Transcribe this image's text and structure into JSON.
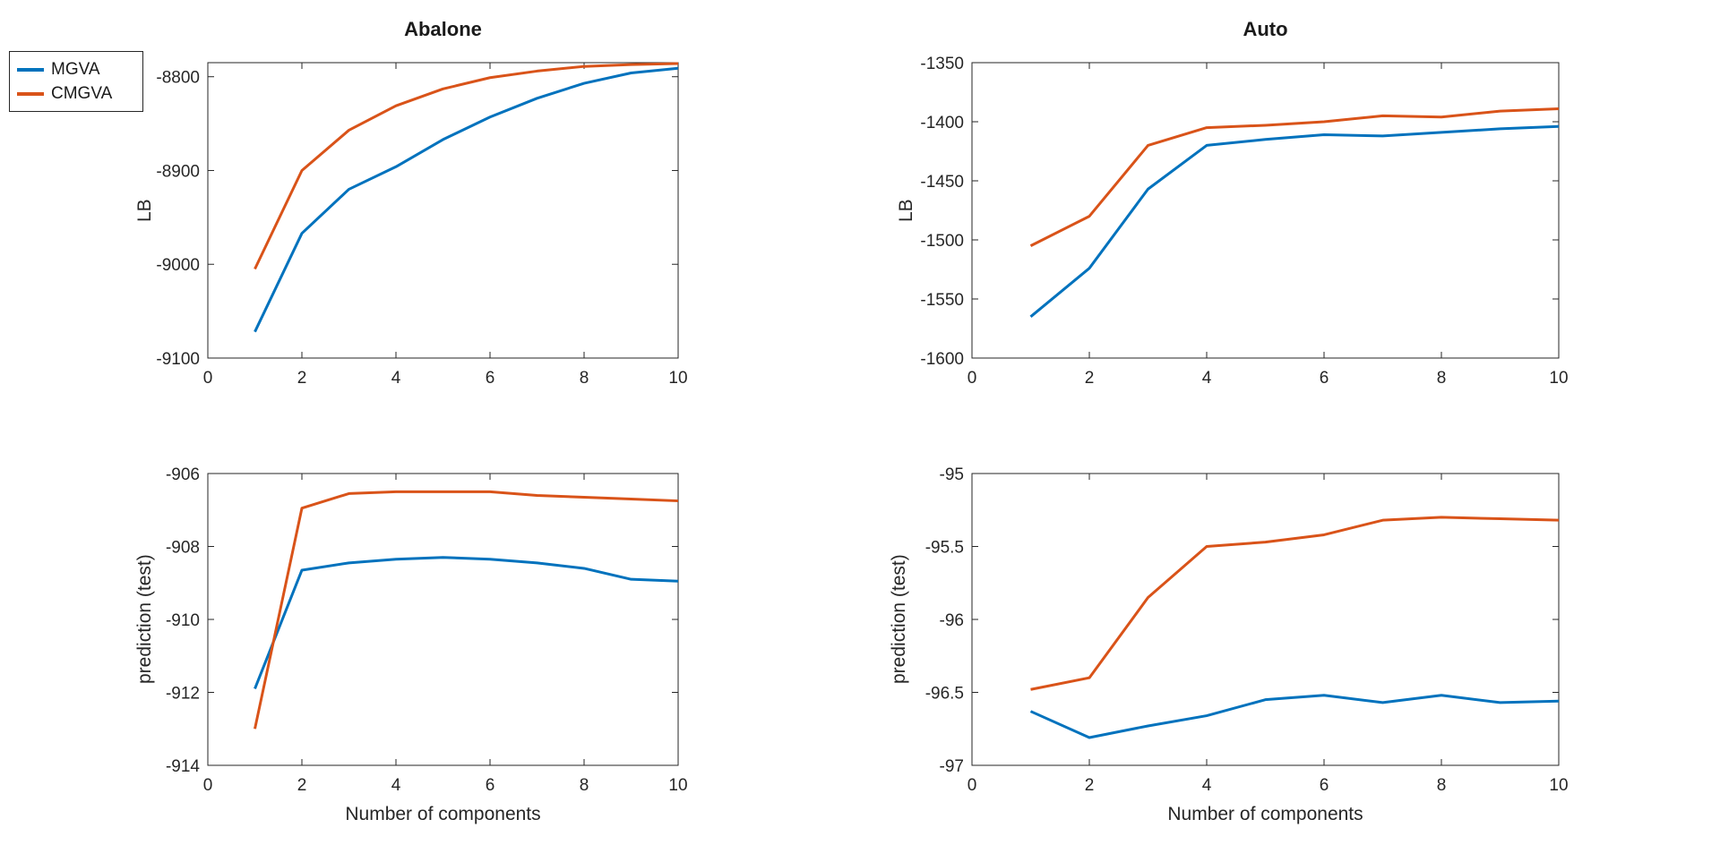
{
  "figure": {
    "background": "#ffffff",
    "axis_color": "#262626",
    "line_width": 3
  },
  "legend": {
    "position": "top-left",
    "items": [
      {
        "label": "MGVA",
        "color": "#0072BD"
      },
      {
        "label": "CMGVA",
        "color": "#D95319"
      }
    ]
  },
  "chart_data": [
    {
      "type": "line",
      "title": "Abalone",
      "ylabel": "LB",
      "xlabel": "",
      "x": [
        1,
        2,
        3,
        4,
        5,
        6,
        7,
        8,
        9,
        10
      ],
      "xlim": [
        0,
        10
      ],
      "ylim": [
        -9100,
        -8785
      ],
      "xticks": [
        0,
        2,
        4,
        6,
        8,
        10
      ],
      "yticks": [
        -9100,
        -9000,
        -8900,
        -8800
      ],
      "grid": false,
      "legend_position": "outside-top-left",
      "series": [
        {
          "name": "MGVA",
          "color": "#0072BD",
          "values": [
            -9072,
            -8967,
            -8920,
            -8896,
            -8867,
            -8843,
            -8823,
            -8807,
            -8796,
            -8791
          ]
        },
        {
          "name": "CMGVA",
          "color": "#D95319",
          "values": [
            -9005,
            -8900,
            -8857,
            -8831,
            -8813,
            -8801,
            -8794,
            -8789,
            -8787,
            -8786
          ]
        }
      ]
    },
    {
      "type": "line",
      "title": "Auto",
      "ylabel": "LB",
      "xlabel": "",
      "x": [
        1,
        2,
        3,
        4,
        5,
        6,
        7,
        8,
        9,
        10
      ],
      "xlim": [
        0,
        10
      ],
      "ylim": [
        -1600,
        -1350
      ],
      "xticks": [
        0,
        2,
        4,
        6,
        8,
        10
      ],
      "yticks": [
        -1600,
        -1550,
        -1500,
        -1450,
        -1400,
        -1350
      ],
      "grid": false,
      "series": [
        {
          "name": "MGVA",
          "color": "#0072BD",
          "values": [
            -1565,
            -1524,
            -1457,
            -1420,
            -1415,
            -1411,
            -1412,
            -1409,
            -1406,
            -1404
          ]
        },
        {
          "name": "CMGVA",
          "color": "#D95319",
          "values": [
            -1505,
            -1480,
            -1420,
            -1405,
            -1403,
            -1400,
            -1395,
            -1396,
            -1391,
            -1389
          ]
        }
      ]
    },
    {
      "type": "line",
      "title": "",
      "ylabel": "prediction (test)",
      "xlabel": "Number of components",
      "x": [
        1,
        2,
        3,
        4,
        5,
        6,
        7,
        8,
        9,
        10
      ],
      "xlim": [
        0,
        10
      ],
      "ylim": [
        -914,
        -906
      ],
      "xticks": [
        0,
        2,
        4,
        6,
        8,
        10
      ],
      "yticks": [
        -914,
        -912,
        -910,
        -908,
        -906
      ],
      "grid": false,
      "series": [
        {
          "name": "MGVA",
          "color": "#0072BD",
          "values": [
            -911.9,
            -908.65,
            -908.45,
            -908.35,
            -908.3,
            -908.35,
            -908.45,
            -908.6,
            -908.9,
            -908.95
          ]
        },
        {
          "name": "CMGVA",
          "color": "#D95319",
          "values": [
            -913.0,
            -906.95,
            -906.55,
            -906.5,
            -906.5,
            -906.5,
            -906.6,
            -906.65,
            -906.7,
            -906.75
          ]
        }
      ]
    },
    {
      "type": "line",
      "title": "",
      "ylabel": "prediction (test)",
      "xlabel": "Number of components",
      "x": [
        1,
        2,
        3,
        4,
        5,
        6,
        7,
        8,
        9,
        10
      ],
      "xlim": [
        0,
        10
      ],
      "ylim": [
        -97,
        -95
      ],
      "xticks": [
        0,
        2,
        4,
        6,
        8,
        10
      ],
      "yticks": [
        -97,
        -96.5,
        -96,
        -95.5,
        -95
      ],
      "grid": false,
      "series": [
        {
          "name": "MGVA",
          "color": "#0072BD",
          "values": [
            -96.63,
            -96.81,
            -96.73,
            -96.66,
            -96.55,
            -96.52,
            -96.57,
            -96.52,
            -96.57,
            -96.56
          ]
        },
        {
          "name": "CMGVA",
          "color": "#D95319",
          "values": [
            -96.48,
            -96.4,
            -95.85,
            -95.5,
            -95.47,
            -95.42,
            -95.32,
            -95.3,
            -95.31,
            -95.32
          ]
        }
      ]
    }
  ]
}
